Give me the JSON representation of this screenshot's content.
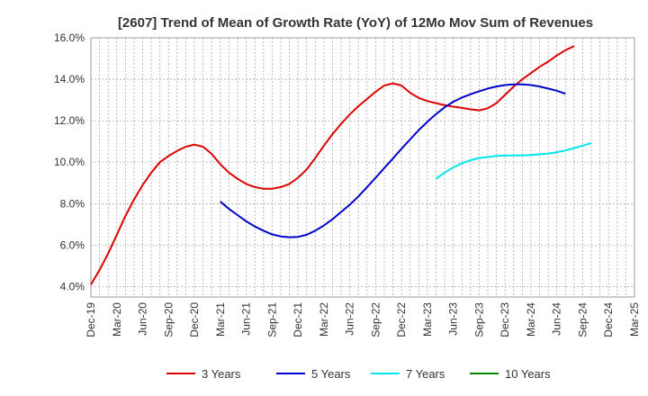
{
  "chart_data": {
    "type": "line",
    "title": "[2607]  Trend of Mean of Growth Rate (YoY) of 12Mo Mov Sum of Revenues",
    "xlabel": "",
    "ylabel": "",
    "ylim": [
      3.5,
      16.0
    ],
    "y_ticks": [
      4.0,
      6.0,
      8.0,
      10.0,
      12.0,
      14.0,
      16.0
    ],
    "y_tick_labels": [
      "4.0%",
      "6.0%",
      "8.0%",
      "10.0%",
      "12.0%",
      "14.0%",
      "16.0%"
    ],
    "x_tick_labels": [
      "Dec-19",
      "Mar-20",
      "Jun-20",
      "Sep-20",
      "Dec-20",
      "Mar-21",
      "Jun-21",
      "Sep-21",
      "Dec-21",
      "Mar-22",
      "Jun-22",
      "Sep-22",
      "Dec-22",
      "Mar-23",
      "Jun-23",
      "Sep-23",
      "Dec-23",
      "Mar-24",
      "Jun-24",
      "Sep-24",
      "Dec-24",
      "Mar-25"
    ],
    "x_index_range": [
      0,
      63
    ],
    "grid": true,
    "legend_position": "bottom",
    "series": [
      {
        "name": "3 Years",
        "color": "#dd0000",
        "start_index": 0,
        "values": [
          4.1,
          4.8,
          5.6,
          6.5,
          7.4,
          8.2,
          8.9,
          9.5,
          10.0,
          10.3,
          10.55,
          10.75,
          10.85,
          10.75,
          10.4,
          9.9,
          9.5,
          9.2,
          8.95,
          8.8,
          8.72,
          8.72,
          8.8,
          8.95,
          9.25,
          9.65,
          10.2,
          10.8,
          11.35,
          11.85,
          12.3,
          12.7,
          13.05,
          13.4,
          13.7,
          13.8,
          13.7,
          13.35,
          13.1,
          12.95,
          12.85,
          12.75,
          12.68,
          12.62,
          12.55,
          12.5,
          12.6,
          12.85,
          13.25,
          13.65,
          14.0,
          14.3,
          14.6,
          14.85,
          15.15,
          15.4,
          15.6
        ]
      },
      {
        "name": "5 Years",
        "color": "#0000cc",
        "start_index": 15,
        "values": [
          8.1,
          7.75,
          7.45,
          7.15,
          6.9,
          6.7,
          6.52,
          6.42,
          6.38,
          6.4,
          6.5,
          6.7,
          6.95,
          7.25,
          7.6,
          7.95,
          8.35,
          8.8,
          9.25,
          9.72,
          10.18,
          10.65,
          11.1,
          11.55,
          11.95,
          12.32,
          12.65,
          12.92,
          13.12,
          13.28,
          13.42,
          13.55,
          13.65,
          13.72,
          13.75,
          13.75,
          13.72,
          13.65,
          13.55,
          13.45,
          13.3
        ]
      },
      {
        "name": "7 Years",
        "color": "#00e5ee",
        "start_index": 40,
        "values": [
          9.2,
          9.5,
          9.75,
          9.95,
          10.1,
          10.2,
          10.25,
          10.3,
          10.32,
          10.33,
          10.33,
          10.35,
          10.38,
          10.42,
          10.48,
          10.57,
          10.68,
          10.8,
          10.92
        ]
      },
      {
        "name": "10 Years",
        "color": "#008800",
        "start_index": 63,
        "values": []
      }
    ]
  }
}
